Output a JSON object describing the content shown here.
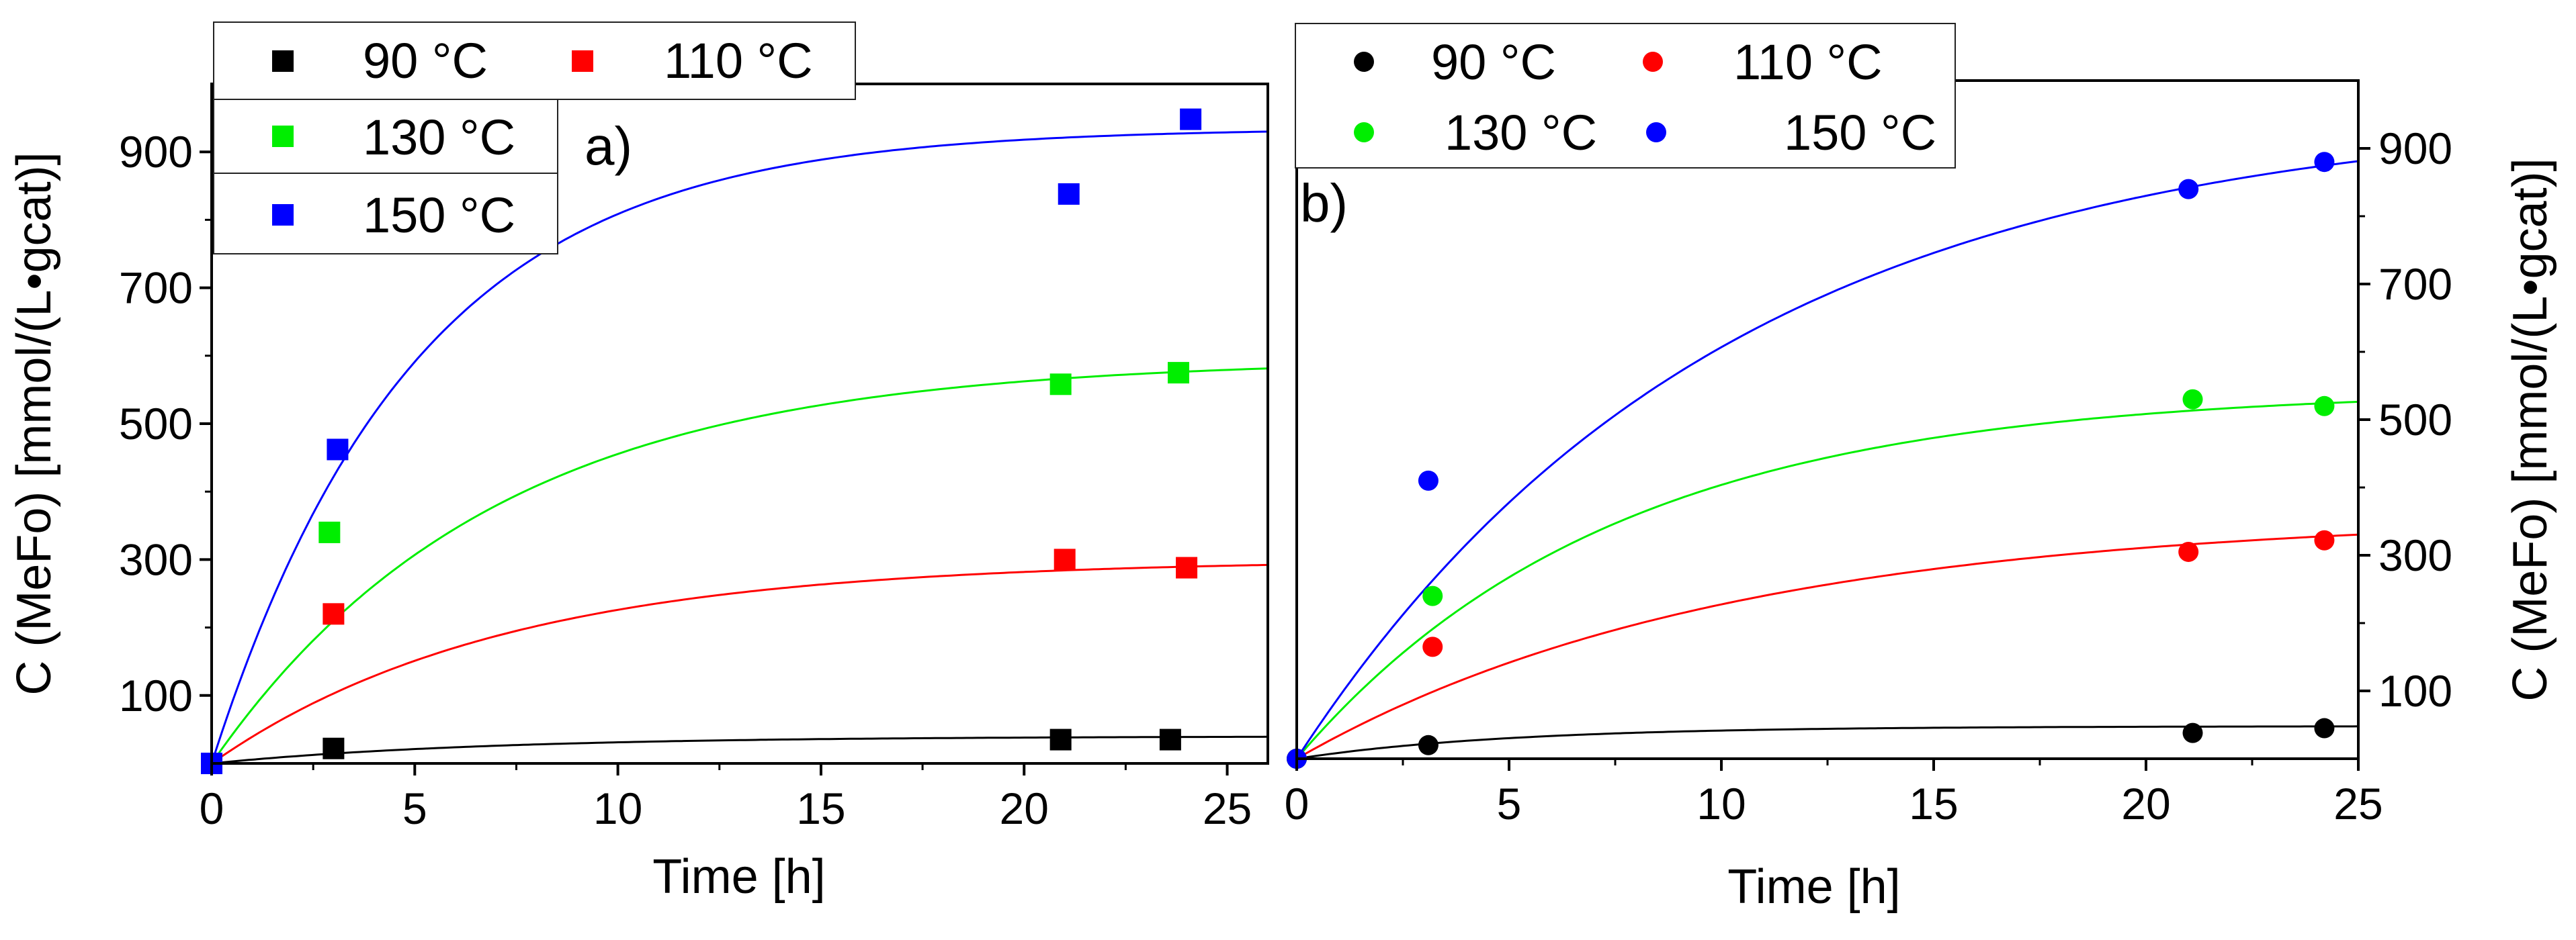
{
  "chart_data": [
    {
      "type": "scatter",
      "panel": "a)",
      "marker": "square",
      "xlabel": "Time [h]",
      "ylabel": "C (MeFo) [mmol/(L•gcat)]",
      "xlim": [
        0,
        26
      ],
      "ylim": [
        0,
        1000
      ],
      "xticks": [
        0,
        5,
        10,
        15,
        20,
        25
      ],
      "yticks": [
        100,
        300,
        500,
        700,
        900
      ],
      "series": [
        {
          "name": "90 °C",
          "color": "#000000",
          "points": [
            [
              0,
              0
            ],
            [
              3.0,
              22
            ],
            [
              20.9,
              35
            ],
            [
              23.6,
              35
            ]
          ],
          "fit_cmax": 40,
          "fit_k": 0.15
        },
        {
          "name": "110 °C",
          "color": "#ff0000",
          "points": [
            [
              0,
              0
            ],
            [
              3.0,
              220
            ],
            [
              21.0,
              300
            ],
            [
              24.0,
              288
            ]
          ],
          "fit_cmax": 300,
          "fit_k": 0.14
        },
        {
          "name": "130 °C",
          "color": "#00ee00",
          "points": [
            [
              0,
              0
            ],
            [
              2.9,
              340
            ],
            [
              20.9,
              558
            ],
            [
              23.8,
              575
            ]
          ],
          "fit_cmax": 595,
          "fit_k": 0.145
        },
        {
          "name": "150 °C",
          "color": "#0000ff",
          "points": [
            [
              0,
              0
            ],
            [
              3.1,
              462
            ],
            [
              21.1,
              838
            ],
            [
              24.1,
              948
            ]
          ],
          "fit_cmax": 935,
          "fit_k": 0.2
        }
      ]
    },
    {
      "type": "scatter",
      "panel": "b)",
      "marker": "circle",
      "xlabel": "Time [h]",
      "ylabel": "C (MeFo) [mmol/(L•gcat)]",
      "xlim": [
        0,
        25
      ],
      "ylim": [
        0,
        1000
      ],
      "xticks": [
        0,
        5,
        10,
        15,
        20,
        25
      ],
      "yticks": [
        100,
        300,
        500,
        700,
        900
      ],
      "series": [
        {
          "name": "90 °C",
          "color": "#000000",
          "points": [
            [
              0,
              0
            ],
            [
              3.1,
              20
            ],
            [
              21.1,
              38
            ],
            [
              24.2,
              45
            ]
          ],
          "fit_cmax": 48,
          "fit_k": 0.2
        },
        {
          "name": "110 °C",
          "color": "#ff0000",
          "points": [
            [
              0,
              0
            ],
            [
              3.2,
              165
            ],
            [
              21.0,
              305
            ],
            [
              24.2,
              322
            ]
          ],
          "fit_cmax": 360,
          "fit_k": 0.1
        },
        {
          "name": "130 °C",
          "color": "#00ee00",
          "points": [
            [
              0,
              0
            ],
            [
              3.2,
              240
            ],
            [
              21.1,
              530
            ],
            [
              24.2,
              520
            ]
          ],
          "fit_cmax": 545,
          "fit_k": 0.135
        },
        {
          "name": "150 °C",
          "color": "#0000ff",
          "points": [
            [
              0,
              0
            ],
            [
              3.1,
              410
            ],
            [
              21.0,
              840
            ],
            [
              24.2,
              880
            ]
          ],
          "fit_cmax": 960,
          "fit_k": 0.1
        }
      ]
    }
  ]
}
